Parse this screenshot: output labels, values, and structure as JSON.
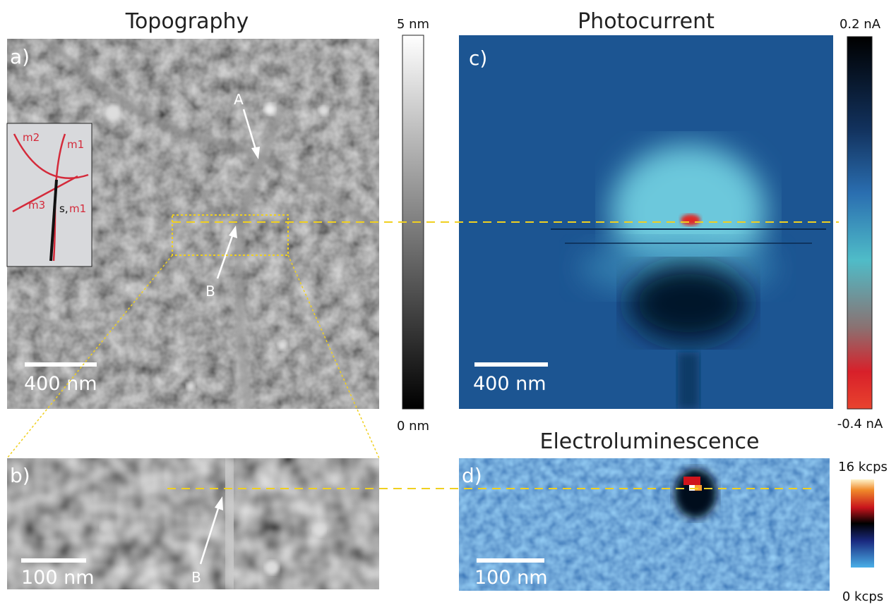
{
  "titles": [
    "Topography",
    "Photocurrent",
    "Electroluminescence"
  ],
  "panels": [
    {
      "label": "a)",
      "scale_bar": "400 nm",
      "markers": [
        "A",
        "B"
      ],
      "inset_labels": [
        "m2",
        "m1",
        "m3",
        "s,",
        "m1"
      ]
    },
    {
      "label": "b)",
      "scale_bar": "100 nm",
      "markers": [
        "B"
      ]
    },
    {
      "label": "c)",
      "scale_bar": "400 nm"
    },
    {
      "label": "d)",
      "scale_bar": "100 nm"
    }
  ],
  "colorbars": [
    {
      "top": "5 nm",
      "bottom": "0 nm"
    },
    {
      "top": "0.2 nA",
      "bottom": "-0.4 nA"
    },
    {
      "top": "16 kcps",
      "bottom": "0 kcps"
    }
  ]
}
